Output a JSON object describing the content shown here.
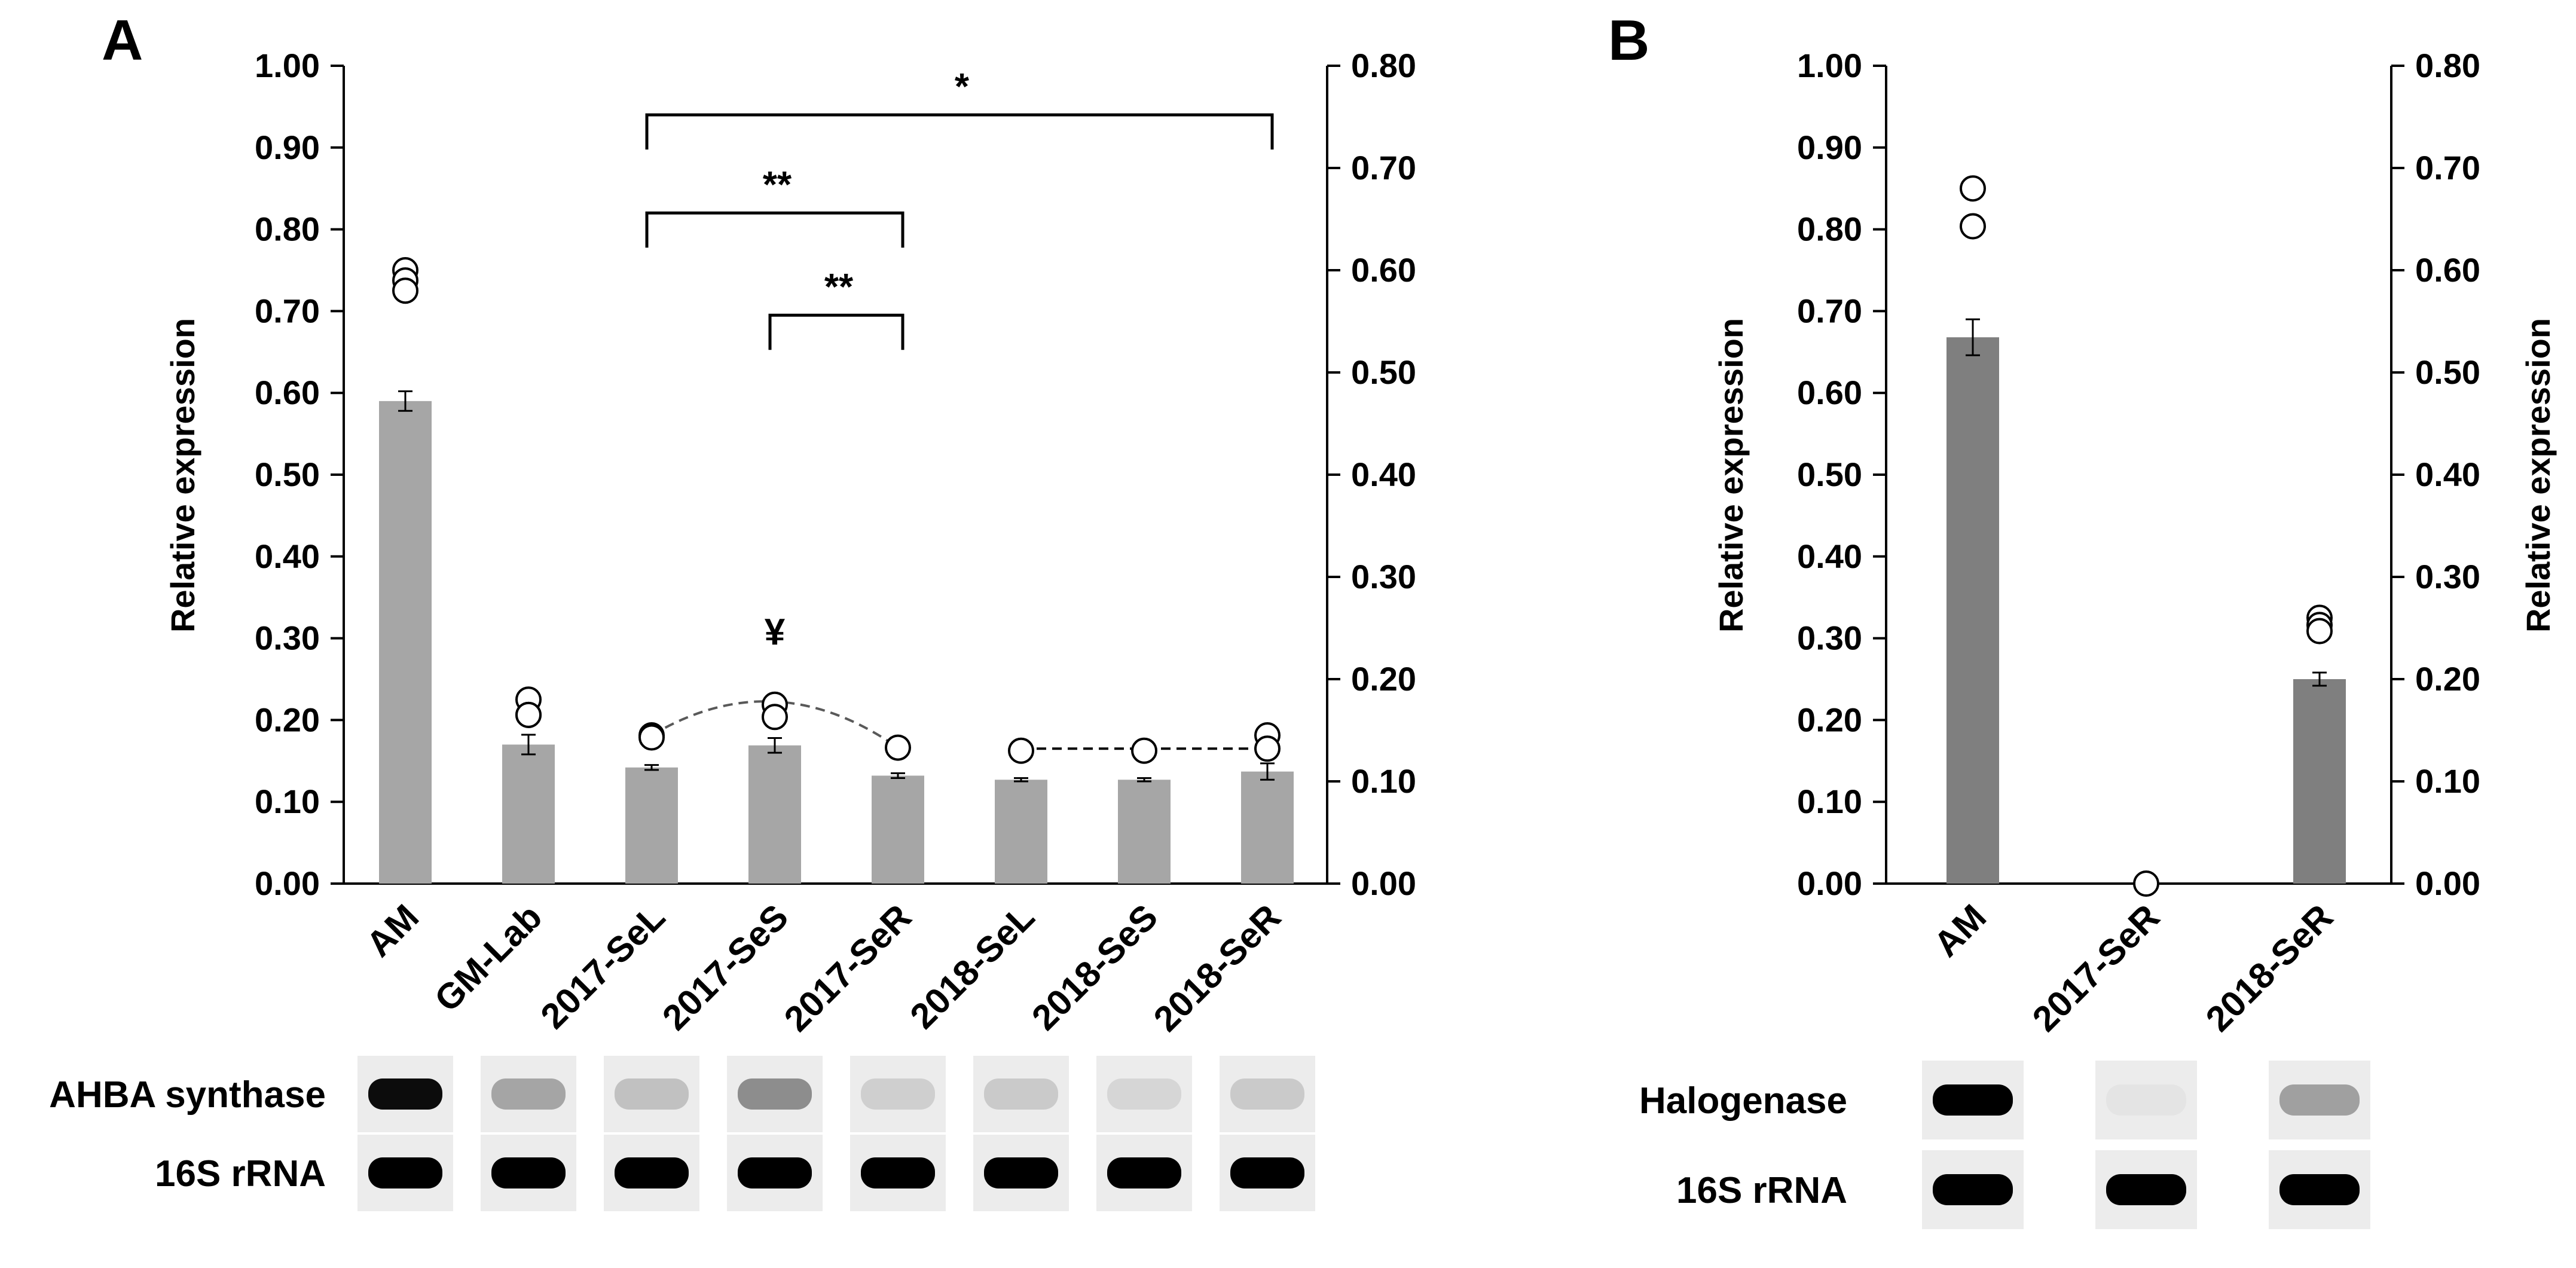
{
  "panels": [
    {
      "label": "A",
      "chart_data": {
        "type": "bar",
        "categories": [
          "AM",
          "GM-Lab",
          "2017-SeL",
          "2017-SeS",
          "2017-SeR",
          "2018-SeL",
          "2018-SeS",
          "2018-SeR"
        ],
        "values": [
          0.59,
          0.17,
          0.142,
          0.169,
          0.132,
          0.127,
          0.127,
          0.137
        ],
        "errors": [
          0.012,
          0.012,
          0.003,
          0.009,
          0.003,
          0.002,
          0.002,
          0.01
        ],
        "bar_color": "#a6a6a6",
        "left_axis": {
          "label": "Relative expression",
          "ylim": [
            0,
            1.0
          ],
          "ticks": [
            "0.00",
            "0.10",
            "0.20",
            "0.30",
            "0.40",
            "0.50",
            "0.60",
            "0.70",
            "0.80",
            "0.90",
            "1.00"
          ]
        },
        "right_axis": {
          "label": "",
          "ylim": [
            0,
            0.8
          ],
          "ticks": [
            "0.00",
            "0.10",
            "0.20",
            "0.30",
            "0.40",
            "0.50",
            "0.60",
            "0.70",
            "0.80"
          ]
        },
        "points_right_axis": [
          [
            0.6,
            0.59,
            0.58
          ],
          [
            0.18,
            0.165,
            0.165
          ],
          [
            0.145,
            0.143
          ],
          [
            0.175,
            0.163
          ],
          [
            0.133
          ],
          [
            0.13
          ],
          [
            0.13
          ],
          [
            0.145,
            0.132
          ]
        ],
        "dashed_curve_categories": [
          "2017-SeL",
          "2017-SeS",
          "2017-SeR"
        ],
        "dashed_line_categories": [
          "2018-SeL",
          "2018-SeS",
          "2018-SeR"
        ],
        "dashed_y_right": {
          "curve": [
            0.145,
            0.178,
            0.133
          ],
          "line": 0.132
        },
        "annotations": [
          {
            "text": "*",
            "from": "2017-SeL",
            "to": "2018-SeR",
            "y_left": 0.94
          },
          {
            "text": "**",
            "from": "2017-SeL",
            "to": "2017-SeR",
            "y_left": 0.82
          },
          {
            "text": "**",
            "from": "2017-SeS",
            "to": "2017-SeR",
            "y_left": 0.695
          },
          {
            "text": "¥",
            "at": "2017-SeS",
            "y_left": 0.285
          }
        ]
      },
      "gel": {
        "rows": [
          {
            "label": "AHBA synthase",
            "intensities": [
              0.95,
              0.3,
              0.18,
              0.4,
              0.12,
              0.14,
              0.09,
              0.14
            ]
          },
          {
            "label": "16S rRNA",
            "intensities": [
              1,
              1,
              1,
              1,
              1,
              1,
              1,
              1
            ]
          }
        ]
      }
    },
    {
      "label": "B",
      "chart_data": {
        "type": "bar",
        "categories": [
          "AM",
          "2017-SeR",
          "2018-SeR"
        ],
        "values": [
          0.668,
          0.0,
          0.25
        ],
        "errors": [
          0.022,
          0,
          0.008
        ],
        "bar_color": "#7f7f7f",
        "left_axis": {
          "label": "Relative expression",
          "ylim": [
            0,
            1.0
          ],
          "ticks": [
            "0.00",
            "0.10",
            "0.20",
            "0.30",
            "0.40",
            "0.50",
            "0.60",
            "0.70",
            "0.80",
            "0.90",
            "1.00"
          ]
        },
        "right_axis": {
          "label": "Relative expression",
          "ylim": [
            0,
            0.8
          ],
          "ticks": [
            "0.00",
            "0.10",
            "0.20",
            "0.30",
            "0.40",
            "0.50",
            "0.60",
            "0.70",
            "0.80"
          ]
        },
        "points_right_axis": [
          [
            0.68,
            0.643
          ],
          [
            0.0
          ],
          [
            0.26,
            0.253,
            0.247
          ]
        ]
      },
      "gel": {
        "rows": [
          {
            "label": "Halogenase",
            "intensities": [
              1,
              0.03,
              0.32
            ]
          },
          {
            "label": "16S rRNA",
            "intensities": [
              1,
              1,
              1
            ]
          }
        ]
      }
    }
  ]
}
